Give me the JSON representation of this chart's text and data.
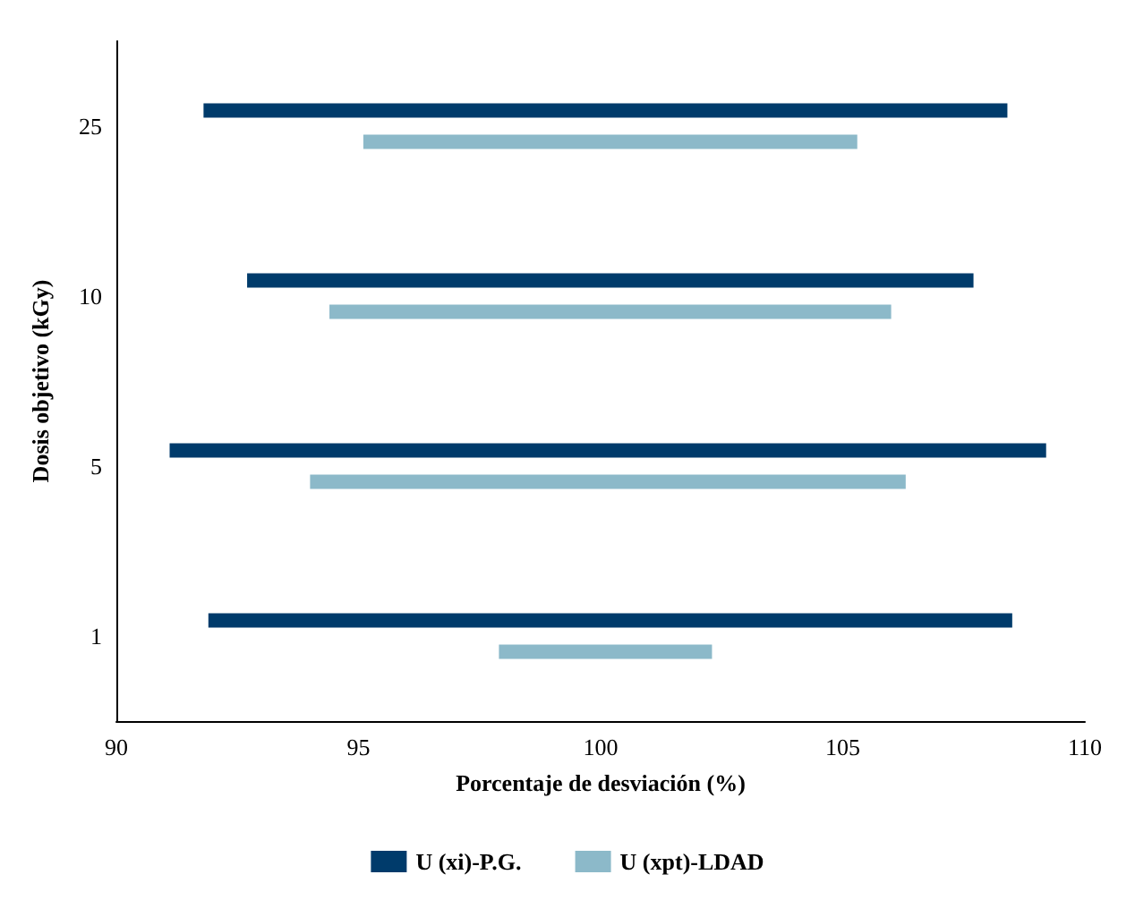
{
  "chart_data": {
    "type": "bar",
    "orientation": "horizontal",
    "xlabel": "Porcentaje de desviación (%)",
    "ylabel": "Dosis objetivo (kGy)",
    "categories": [
      "25",
      "10",
      "5",
      "1"
    ],
    "series": [
      {
        "name": "U (xi)-P.G.",
        "color": "#003b6b",
        "base": [
          91.8,
          92.7,
          91.1,
          91.9
        ],
        "values": [
          16.6,
          15.0,
          18.1,
          16.6
        ]
      },
      {
        "name": "U (xpt)-LDAD",
        "color": "#8cb9c9",
        "base": [
          95.1,
          94.4,
          94.0,
          97.9
        ],
        "values": [
          10.2,
          11.6,
          12.3,
          4.4
        ]
      }
    ],
    "xlim": [
      90,
      110
    ],
    "xticks": [
      90,
      95,
      100,
      105,
      110
    ],
    "grid": false,
    "legend": "bottom"
  }
}
